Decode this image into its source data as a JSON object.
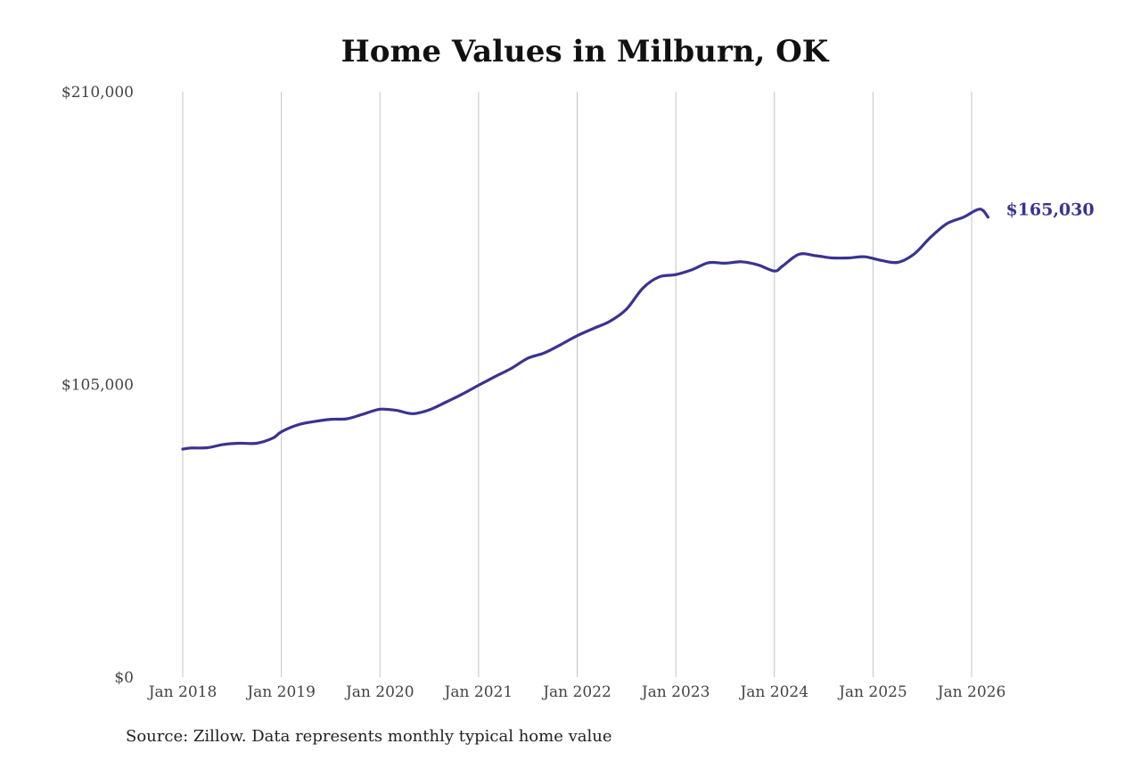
{
  "chart_data": {
    "type": "line",
    "title": "Home Values in Milburn, OK",
    "xlabel": "",
    "ylabel": "",
    "ylim": [
      0,
      210000
    ],
    "y_ticks": [
      {
        "value": 0,
        "label": "$0"
      },
      {
        "value": 105000,
        "label": "$105,000"
      },
      {
        "value": 210000,
        "label": "$210,000"
      }
    ],
    "x_range": [
      "2018-01",
      "2026-03"
    ],
    "x_ticks": [
      {
        "date": "2018-01",
        "label": "Jan 2018"
      },
      {
        "date": "2019-01",
        "label": "Jan 2019"
      },
      {
        "date": "2020-01",
        "label": "Jan 2020"
      },
      {
        "date": "2021-01",
        "label": "Jan 2021"
      },
      {
        "date": "2022-01",
        "label": "Jan 2022"
      },
      {
        "date": "2023-01",
        "label": "Jan 2023"
      },
      {
        "date": "2024-01",
        "label": "Jan 2024"
      },
      {
        "date": "2025-01",
        "label": "Jan 2025"
      },
      {
        "date": "2026-01",
        "label": "Jan 2026"
      }
    ],
    "vertical_gridlines": true,
    "horizontal_gridlines": false,
    "line_color": "#3a3391",
    "end_label": "$165,030",
    "series": [
      {
        "x": [
          "2018-01",
          "2018-02",
          "2018-04",
          "2018-06",
          "2018-08",
          "2018-10",
          "2018-12",
          "2019-01",
          "2019-03",
          "2019-05",
          "2019-07",
          "2019-09",
          "2019-11",
          "2020-01",
          "2020-03",
          "2020-05",
          "2020-07",
          "2020-09",
          "2020-11",
          "2021-01",
          "2021-03",
          "2021-05",
          "2021-07",
          "2021-09",
          "2021-11",
          "2022-01",
          "2022-03",
          "2022-05",
          "2022-07",
          "2022-09",
          "2022-11",
          "2023-01",
          "2023-03",
          "2023-05",
          "2023-07",
          "2023-09",
          "2023-11",
          "2024-01",
          "2024-02",
          "2024-04",
          "2024-06",
          "2024-08",
          "2024-10",
          "2024-12",
          "2025-02",
          "2025-04",
          "2025-06",
          "2025-08",
          "2025-10",
          "2025-12",
          "2026-02",
          "2026-03"
        ],
        "values": [
          81800,
          82200,
          82300,
          83500,
          83900,
          83900,
          85800,
          88000,
          90500,
          91700,
          92500,
          92700,
          94400,
          96100,
          95700,
          94500,
          95900,
          98600,
          101500,
          104700,
          107800,
          110800,
          114400,
          116300,
          119300,
          122500,
          125100,
          127700,
          132000,
          139600,
          143600,
          144400,
          146200,
          148700,
          148500,
          149000,
          147900,
          145700,
          147500,
          151700,
          151200,
          150400,
          150400,
          150800,
          149500,
          148800,
          151800,
          157800,
          162700,
          165000,
          167900,
          165030
        ]
      }
    ]
  },
  "source_note": "Source: Zillow. Data represents monthly typical home value"
}
